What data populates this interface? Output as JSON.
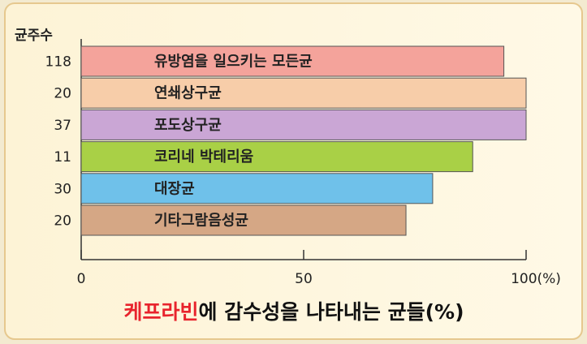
{
  "chart_data": {
    "type": "bar",
    "orientation": "horizontal",
    "title": [
      "케프라빈",
      "에 감수성을 나타내는 균들(%)"
    ],
    "count_label": "균주수",
    "categories": [
      "유방염을 일으키는 모든균",
      "연쇄상구균",
      "포도상구균",
      "코리네 박테리움",
      "대장균",
      "기타그람음성균"
    ],
    "strain_counts": [
      118,
      20,
      37,
      11,
      30,
      20
    ],
    "values": [
      95,
      100,
      100,
      88,
      79,
      73
    ],
    "colors": [
      "#f4a39b",
      "#f7cda9",
      "#caa6d5",
      "#a9d046",
      "#6fc1ea",
      "#d5a785"
    ],
    "title_colors": [
      "#e8232c",
      "#111111"
    ],
    "xlim": [
      0,
      100
    ],
    "xticks": [
      0,
      50,
      {
        "value": 100,
        "label": "100(%)"
      }
    ]
  }
}
